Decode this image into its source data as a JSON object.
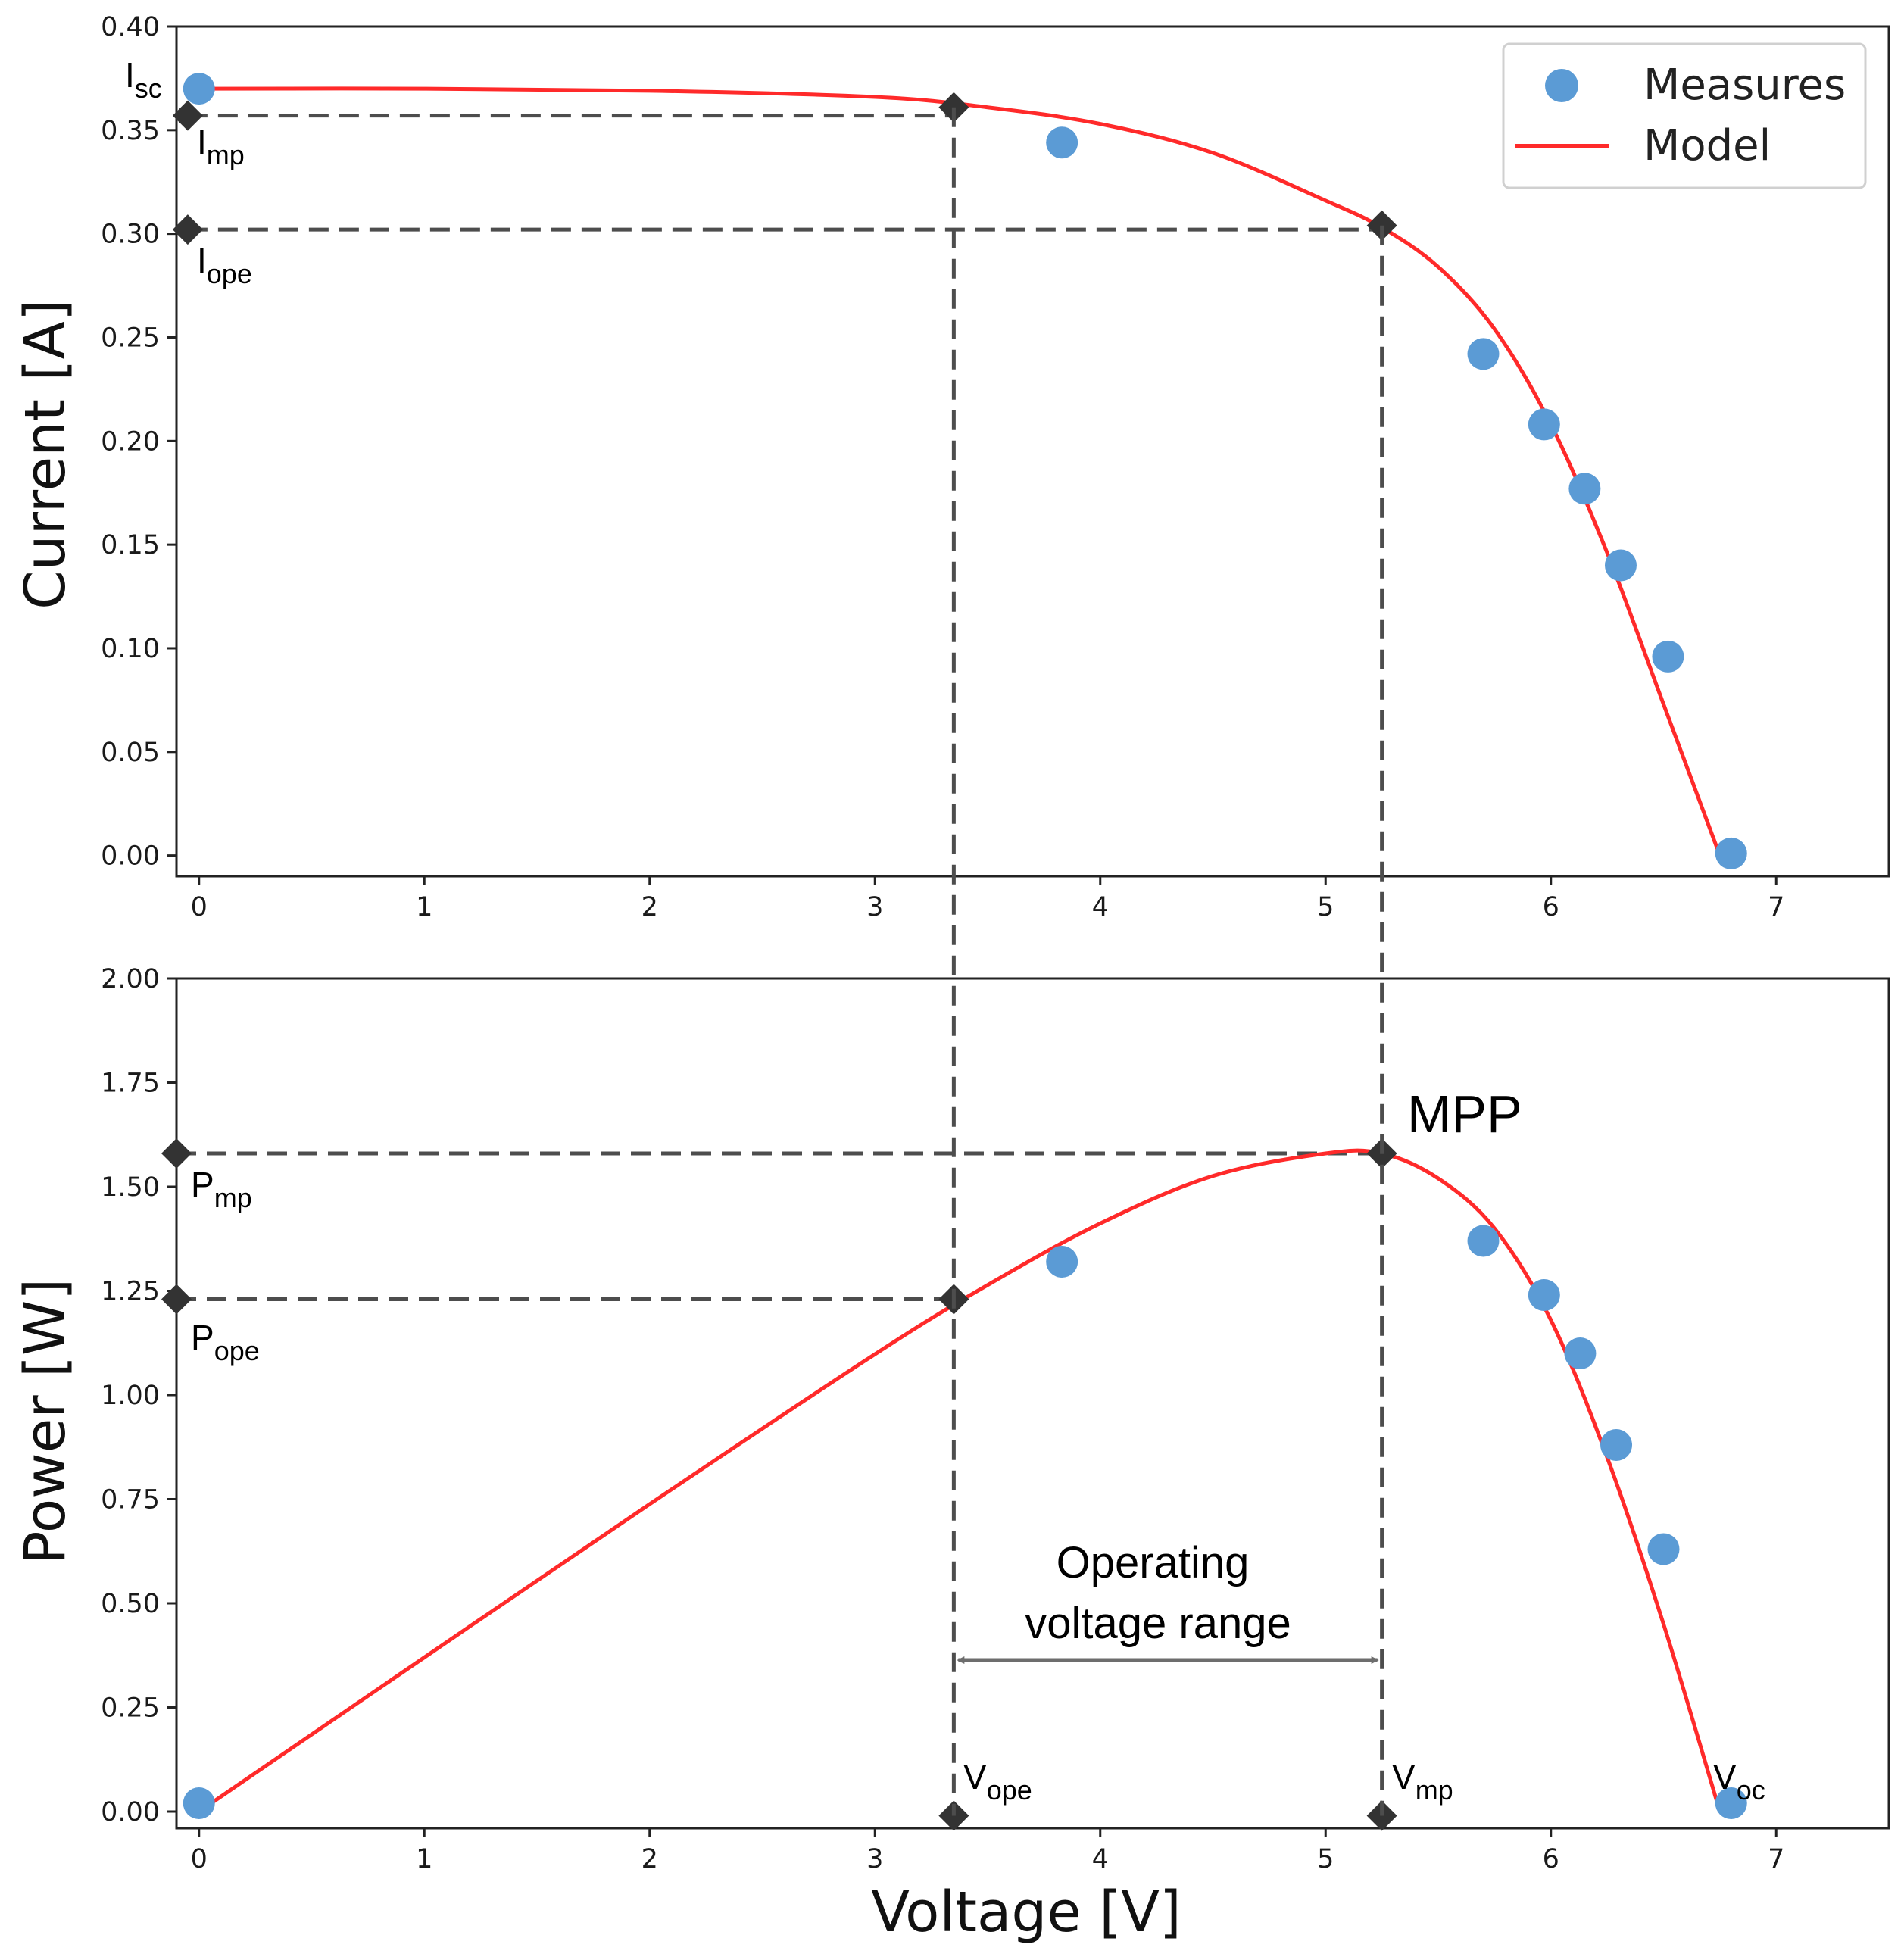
{
  "chart_data": [
    {
      "type": "scatter+line",
      "panel": "top",
      "ylabel": "Current [A]",
      "xlim": [
        -0.1,
        7.5
      ],
      "ylim": [
        -0.01,
        0.4
      ],
      "yticks": [
        0.0,
        0.05,
        0.1,
        0.15,
        0.2,
        0.25,
        0.3,
        0.35,
        0.4
      ],
      "ytick_labels": [
        "0.00",
        "0.05",
        "0.10",
        "0.15",
        "0.20",
        "0.25",
        "0.30",
        "0.35",
        "0.40"
      ],
      "xticks": [
        0,
        1,
        2,
        3,
        4,
        5,
        6,
        7
      ],
      "xtick_labels": [
        "0",
        "1",
        "2",
        "3",
        "4",
        "5",
        "6",
        "7"
      ],
      "measures": {
        "name": "Measures",
        "color": "#5b9bd5",
        "x": [
          0.0,
          3.83,
          5.7,
          5.97,
          6.15,
          6.31,
          6.52,
          6.8
        ],
        "y": [
          0.37,
          0.344,
          0.242,
          0.208,
          0.177,
          0.14,
          0.096,
          0.001
        ]
      },
      "model": {
        "name": "Model",
        "color": "#ff2a2a",
        "x": [
          0.0,
          1.0,
          2.0,
          3.0,
          3.5,
          4.0,
          4.5,
          5.0,
          5.25,
          5.5,
          5.75,
          6.0,
          6.25,
          6.5,
          6.75
        ],
        "y": [
          0.37,
          0.37,
          0.369,
          0.366,
          0.361,
          0.353,
          0.339,
          0.316,
          0.303,
          0.284,
          0.254,
          0.208,
          0.146,
          0.073,
          0.0
        ]
      },
      "markers": [
        {
          "x": -0.05,
          "y": 0.357,
          "label": "I",
          "sub": "mp"
        },
        {
          "x": 3.35,
          "y": 0.361
        },
        {
          "x": -0.05,
          "y": 0.302,
          "label": "I",
          "sub": "ope"
        },
        {
          "x": 5.25,
          "y": 0.304
        }
      ],
      "isc_label": {
        "label": "I",
        "sub": "sc"
      }
    },
    {
      "type": "scatter+line",
      "panel": "bottom",
      "ylabel": "Power [W]",
      "xlabel": "Voltage  [V]",
      "xlim": [
        -0.1,
        7.5
      ],
      "ylim": [
        -0.04,
        2.0
      ],
      "yticks": [
        0.0,
        0.25,
        0.5,
        0.75,
        1.0,
        1.25,
        1.5,
        1.75,
        2.0
      ],
      "ytick_labels": [
        "0.00",
        "0.25",
        "0.50",
        "0.75",
        "1.00",
        "1.25",
        "1.50",
        "1.75",
        "2.00"
      ],
      "xticks": [
        0,
        1,
        2,
        3,
        4,
        5,
        6,
        7
      ],
      "xtick_labels": [
        "0",
        "1",
        "2",
        "3",
        "4",
        "5",
        "6",
        "7"
      ],
      "measures": {
        "name": "Measures",
        "x": [
          0.0,
          3.83,
          5.7,
          5.97,
          6.13,
          6.29,
          6.5,
          6.8
        ],
        "y": [
          0.02,
          1.32,
          1.37,
          1.24,
          1.1,
          0.88,
          0.63,
          0.02
        ]
      },
      "model": {
        "name": "Model",
        "x": [
          0.0,
          1.0,
          2.0,
          3.0,
          3.5,
          4.0,
          4.5,
          5.0,
          5.25,
          5.5,
          5.75,
          6.0,
          6.25,
          6.5,
          6.75
        ],
        "y": [
          0.0,
          0.37,
          0.738,
          1.098,
          1.264,
          1.412,
          1.526,
          1.58,
          1.58,
          1.52,
          1.4,
          1.18,
          0.85,
          0.45,
          0.0
        ]
      },
      "markers": [
        {
          "x": -0.1,
          "y": 1.58,
          "label": "P",
          "sub": "mp"
        },
        {
          "x": 5.25,
          "y": 1.58
        },
        {
          "x": -0.1,
          "y": 1.23,
          "label": "P",
          "sub": "ope"
        },
        {
          "x": 3.35,
          "y": 1.23
        },
        {
          "x": 3.35,
          "y": -0.01,
          "label": "V",
          "sub": "ope"
        },
        {
          "x": 5.25,
          "y": -0.01,
          "label": "V",
          "sub": "mp"
        }
      ],
      "voc_label": {
        "label": "V",
        "sub": "oc"
      },
      "mpp_label": "MPP",
      "range_label": [
        "Operating",
        "voltage range"
      ],
      "v_ope": 3.35,
      "v_mp": 5.25
    }
  ],
  "legend": {
    "measures_label": "Measures",
    "model_label": "Model"
  },
  "colors": {
    "measure": "#5b9bd5",
    "model": "#ff2a2a",
    "marker": "#333333",
    "guide": "#4d4d4d",
    "arrow": "#6d6d6d"
  }
}
